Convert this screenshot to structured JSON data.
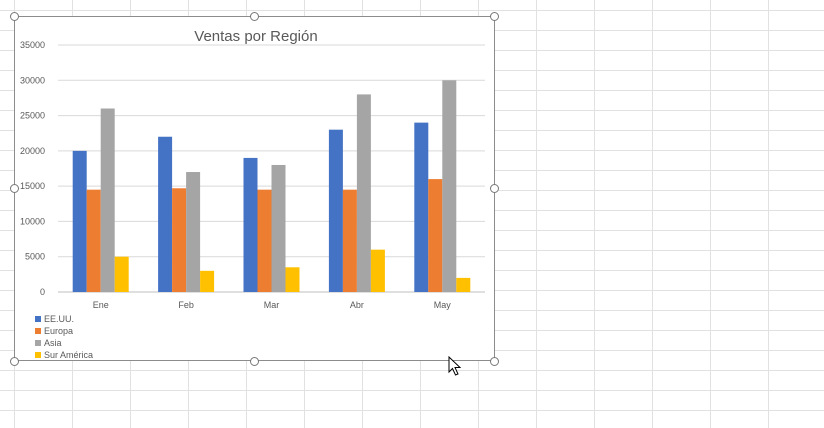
{
  "chart_data": {
    "type": "bar",
    "title": "Ventas por Región",
    "categories": [
      "Ene",
      "Feb",
      "Mar",
      "Abr",
      "May"
    ],
    "series": [
      {
        "name": "EE.UU.",
        "color": "#4472c4",
        "values": [
          20000,
          22000,
          19000,
          23000,
          24000
        ]
      },
      {
        "name": "Europa",
        "color": "#ed7d31",
        "values": [
          14500,
          14700,
          14500,
          14500,
          16000
        ]
      },
      {
        "name": "Asia",
        "color": "#a5a5a5",
        "values": [
          26000,
          17000,
          18000,
          28000,
          30000
        ]
      },
      {
        "name": "Sur América",
        "color": "#ffc000",
        "values": [
          5000,
          3000,
          3500,
          6000,
          2000
        ]
      }
    ],
    "ylim": [
      0,
      35000
    ],
    "yticks": [
      "0",
      "5000",
      "10000",
      "15000",
      "20000",
      "25000",
      "30000",
      "35000"
    ],
    "grid": true,
    "legend_position": "bottom-left"
  }
}
